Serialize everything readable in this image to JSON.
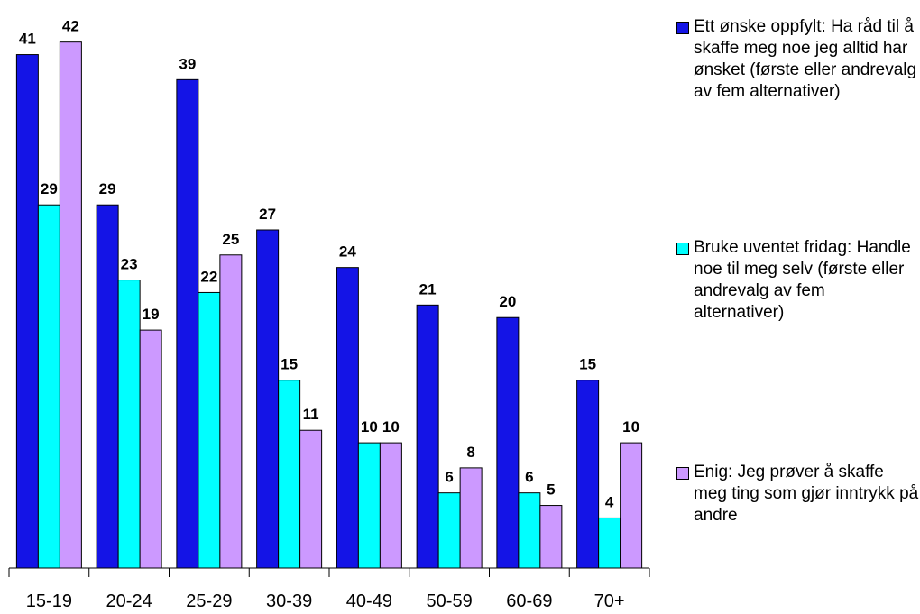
{
  "chart_data": {
    "type": "bar",
    "categories": [
      "15-19",
      "20-24",
      "25-29",
      "30-39",
      "40-49",
      "50-59",
      "60-69",
      "70+"
    ],
    "series": [
      {
        "name": "Ett ønske oppfylt: Ha råd til å skaffe meg noe jeg alltid har ønsket (første eller andrevalg av fem alternativer)",
        "color": "#1414e6",
        "values": [
          41,
          29,
          39,
          27,
          24,
          21,
          20,
          15
        ]
      },
      {
        "name": "Bruke uventet fridag: Handle noe til meg selv  (første eller andrevalg av fem alternativer)",
        "color": "#00ffff",
        "values": [
          29,
          23,
          22,
          15,
          10,
          6,
          6,
          4
        ]
      },
      {
        "name": "Enig: Jeg prøver å skaffe meg ting som gjør inntrykk på andre",
        "color": "#cc99ff",
        "values": [
          42,
          19,
          25,
          11,
          10,
          8,
          5,
          10
        ]
      }
    ],
    "ylim": [
      0,
      45
    ],
    "legend": "right"
  }
}
